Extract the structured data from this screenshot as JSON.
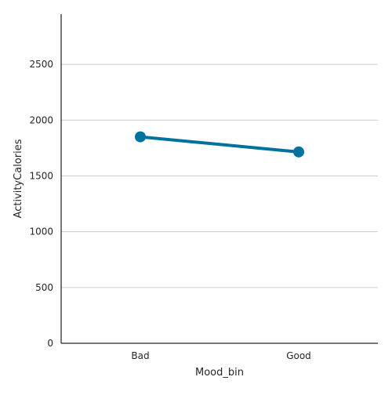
{
  "chart_data": {
    "type": "line",
    "categories": [
      "Bad",
      "Good"
    ],
    "series": [
      {
        "values": [
          1850,
          1715
        ]
      }
    ],
    "xlabel": "Mood_bin",
    "ylabel": "ActivityCalories",
    "ylim": [
      0,
      2950
    ],
    "yticks": [
      0,
      500,
      1000,
      1500,
      2000,
      2500
    ],
    "ytick_labels": [
      "0",
      "500",
      "1000",
      "1500",
      "2000",
      "2500"
    ],
    "grid": "horizontal",
    "marker": "circle",
    "colors": {
      "series": "#0072a0",
      "grid": "#cccccc",
      "axis": "#262626"
    }
  }
}
